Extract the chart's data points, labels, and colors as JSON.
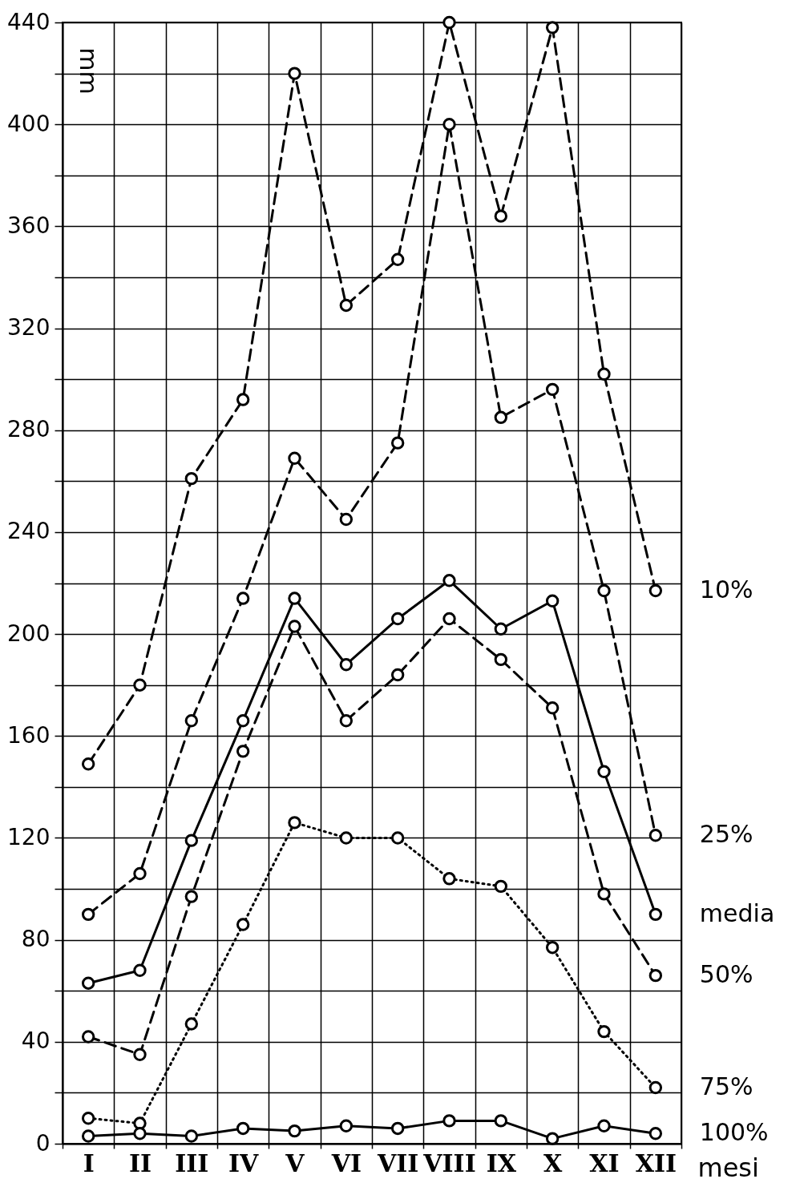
{
  "chart_data": {
    "type": "line",
    "xlabel": "mesi",
    "ylabel": "mm",
    "categories": [
      "I",
      "II",
      "III",
      "IV",
      "V",
      "VI",
      "VII",
      "VIII",
      "IX",
      "X",
      "XI",
      "XII"
    ],
    "ylim": [
      0,
      440
    ],
    "yticks": [
      0,
      {
        "value": 20,
        "label": null
      },
      40,
      {
        "value": 60,
        "label": null
      },
      80,
      {
        "value": 100,
        "label": null
      },
      120,
      {
        "value": 140,
        "label": null
      },
      160,
      {
        "value": 180,
        "label": null
      },
      200,
      {
        "value": 220,
        "label": null
      },
      240,
      {
        "value": 260,
        "label": null
      },
      280,
      {
        "value": 300,
        "label": null
      },
      320,
      {
        "value": 340,
        "label": null
      },
      360,
      {
        "value": 380,
        "label": null
      },
      400,
      {
        "value": 420,
        "label": null
      },
      440
    ],
    "grid": true,
    "legend": false,
    "marker": "circle",
    "series": [
      {
        "name": "10%",
        "color": "#000000",
        "line_style": "dashed",
        "values": [
          149,
          180,
          261,
          292,
          420,
          329,
          347,
          440,
          364,
          438,
          302,
          217
        ]
      },
      {
        "name": "25%",
        "color": "#000000",
        "line_style": "dashed",
        "values": [
          90,
          106,
          166,
          214,
          269,
          245,
          275,
          400,
          285,
          296,
          217,
          121
        ]
      },
      {
        "name": "media",
        "color": "#000000",
        "line_style": "solid",
        "values": [
          63,
          68,
          119,
          166,
          214,
          188,
          206,
          221,
          202,
          213,
          146,
          90
        ]
      },
      {
        "name": "50%",
        "color": "#000000",
        "line_style": "dashed",
        "values": [
          42,
          35,
          97,
          154,
          203,
          166,
          184,
          206,
          190,
          171,
          98,
          66
        ]
      },
      {
        "name": "75%",
        "color": "#000000",
        "line_style": "dotted",
        "values": [
          10,
          8,
          47,
          86,
          126,
          120,
          120,
          104,
          101,
          77,
          44,
          22
        ]
      },
      {
        "name": "100%",
        "color": "#000000",
        "line_style": "solid",
        "values": [
          3,
          4,
          3,
          6,
          5,
          7,
          6,
          9,
          9,
          2,
          7,
          4
        ]
      }
    ]
  }
}
